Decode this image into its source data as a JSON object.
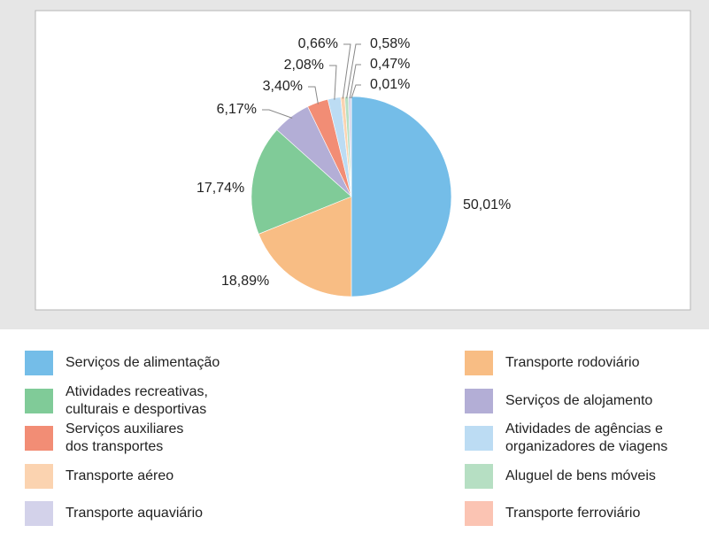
{
  "chart_data": {
    "type": "pie",
    "categories": [
      "Serviços de alimentação",
      "Transporte rodoviário",
      "Atividades recreativas,\nculturais e desportivas",
      "Serviços de alojamento",
      "Serviços auxiliares\ndos transportes",
      "Atividades de agências e\norganizadores de viagens",
      "Transporte aéreo",
      "Aluguel de bens móveis",
      "Transporte aquaviário",
      "Transporte ferroviário"
    ],
    "values": [
      50.01,
      18.89,
      17.74,
      6.17,
      3.4,
      2.08,
      0.66,
      0.58,
      0.47,
      0.01
    ],
    "value_labels": [
      "50,01%",
      "18,89%",
      "17,74%",
      "6,17%",
      "3,40%",
      "2,08%",
      "0,66%",
      "0,58%",
      "0,47%",
      "0,01%"
    ],
    "colors": [
      "#74bde8",
      "#f8bd84",
      "#80cb98",
      "#b3aed6",
      "#f28d75",
      "#bcdcf3",
      "#fbd3b0",
      "#b6dfc3",
      "#d3d2ea",
      "#fbc4b3"
    ],
    "legend": "bottom"
  }
}
